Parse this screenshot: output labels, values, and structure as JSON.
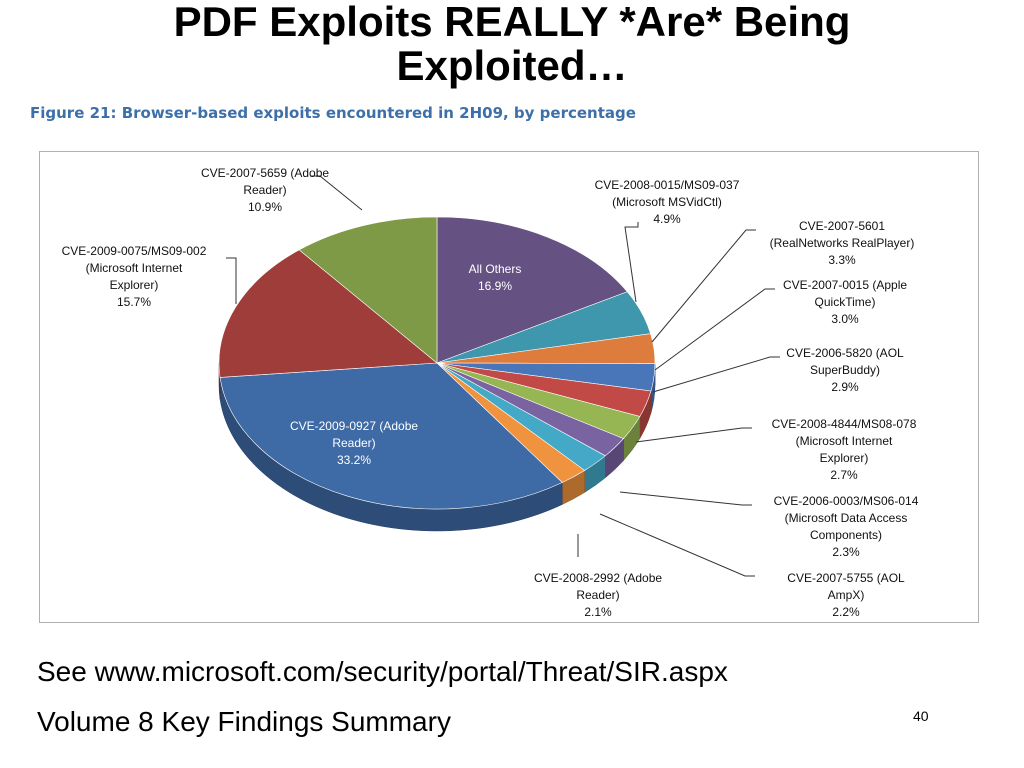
{
  "slide": {
    "title_line1": "PDF Exploits REALLY *Are* Being",
    "title_line2": "Exploited…",
    "figure_caption": "Figure 21: Browser-based exploits encountered in 2H09, by percentage",
    "source_text": "See www.microsoft.com/security/portal/Threat/SIR.aspx",
    "summary_text": "Volume 8 Key Findings Summary",
    "page_number": "40"
  },
  "chart_data": {
    "type": "pie",
    "title": "Figure 21: Browser-based exploits encountered in 2H09, by percentage",
    "unit": "%",
    "slices": [
      {
        "label": "All Others",
        "value": 16.9,
        "color": "#655282"
      },
      {
        "label": "CVE-2008-0015/MS09-037 (Microsoft MSVidCtl)",
        "value": 4.9,
        "color": "#3f97ad"
      },
      {
        "label": "CVE-2007-5601 (RealNetworks RealPlayer)",
        "value": 3.3,
        "color": "#dd7c3c"
      },
      {
        "label": "CVE-2007-0015 (Apple QuickTime)",
        "value": 3.0,
        "color": "#4876b9"
      },
      {
        "label": "CVE-2006-5820 (AOL SuperBuddy)",
        "value": 2.9,
        "color": "#c14a46"
      },
      {
        "label": "CVE-2008-4844/MS08-078 (Microsoft Internet Explorer)",
        "value": 2.7,
        "color": "#96b553"
      },
      {
        "label": "CVE-2006-0003/MS06-014 (Microsoft Data Access Components)",
        "value": 2.3,
        "color": "#7a63a1"
      },
      {
        "label": "CVE-2007-5755 (AOL AmpX)",
        "value": 2.2,
        "color": "#44a8c7"
      },
      {
        "label": "CVE-2008-2992 (Adobe Reader)",
        "value": 2.1,
        "color": "#f0933f"
      },
      {
        "label": "CVE-2009-0927 (Adobe Reader)",
        "value": 33.2,
        "color": "#3e6aa6"
      },
      {
        "label": "CVE-2009-0075/MS09-002 (Microsoft Internet Explorer)",
        "value": 15.7,
        "color": "#9e3d3a"
      },
      {
        "label": "CVE-2007-5659 (Adobe Reader)",
        "value": 10.9,
        "color": "#7f9a46"
      }
    ],
    "labels": [
      {
        "lines": [
          "All Others",
          "16.9%"
        ]
      },
      {
        "lines": [
          "CVE-2008-0015/MS09-037",
          "(Microsoft MSVidCtl)",
          "4.9%"
        ]
      },
      {
        "lines": [
          "CVE-2007-5601",
          "(RealNetworks RealPlayer)",
          "3.3%"
        ]
      },
      {
        "lines": [
          "CVE-2007-0015 (Apple",
          "QuickTime)",
          "3.0%"
        ]
      },
      {
        "lines": [
          "CVE-2006-5820 (AOL",
          "SuperBuddy)",
          "2.9%"
        ]
      },
      {
        "lines": [
          "CVE-2008-4844/MS08-078",
          "(Microsoft Internet",
          "Explorer)",
          "2.7%"
        ]
      },
      {
        "lines": [
          "CVE-2006-0003/MS06-014",
          "(Microsoft Data Access",
          "Components)",
          "2.3%"
        ]
      },
      {
        "lines": [
          "CVE-2007-5755 (AOL",
          "AmpX)",
          "2.2%"
        ]
      },
      {
        "lines": [
          "CVE-2008-2992 (Adobe",
          "Reader)",
          "2.1%"
        ]
      },
      {
        "lines": [
          "CVE-2009-0927 (Adobe",
          "Reader)",
          "33.2%"
        ]
      },
      {
        "lines": [
          "CVE-2009-0075/MS09-002",
          "(Microsoft Internet",
          "Explorer)",
          "15.7%"
        ]
      },
      {
        "lines": [
          "CVE-2007-5659 (Adobe",
          "Reader)",
          "10.9%"
        ]
      }
    ],
    "legend": "none (callout labels)"
  }
}
